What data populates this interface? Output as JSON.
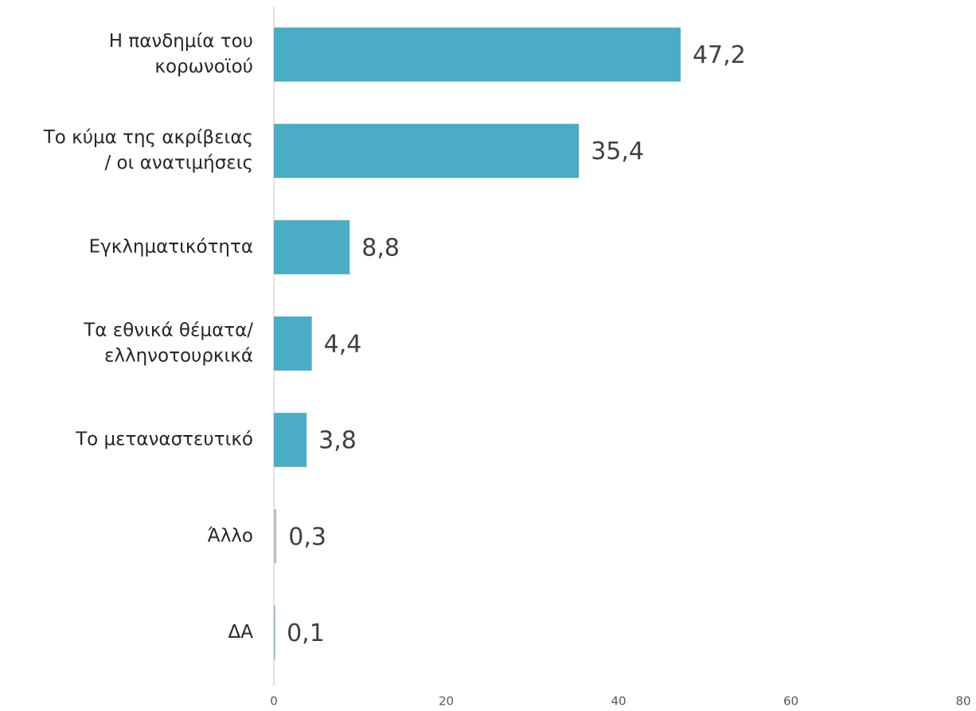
{
  "chart_data": {
    "type": "hbar",
    "categories": [
      [
        "Η πανδημία του",
        "κορωνοϊού"
      ],
      [
        "Το κύμα της ακρίβειας",
        "/ οι ανατιμήσεις"
      ],
      [
        "Εγκληματικότητα"
      ],
      [
        "Τα εθνικά θέματα/",
        "ελληνοτουρκικά"
      ],
      [
        "Το μεταναστευτικό"
      ],
      [
        "Άλλο"
      ],
      [
        "ΔΑ"
      ]
    ],
    "values": [
      47.2,
      35.4,
      8.8,
      4.4,
      3.8,
      0.3,
      0.1
    ],
    "value_labels": [
      "47,2",
      "35,4",
      "8,8",
      "4,4",
      "3,8",
      "0,3",
      "0,1"
    ],
    "colors": [
      "#4bacc6",
      "#4bacc6",
      "#4bacc6",
      "#4bacc6",
      "#4bacc6",
      "#bfbfbf",
      "#8eaec4"
    ],
    "xlim": [
      0,
      80
    ],
    "xticks": [
      0,
      20,
      40,
      60,
      80
    ]
  }
}
